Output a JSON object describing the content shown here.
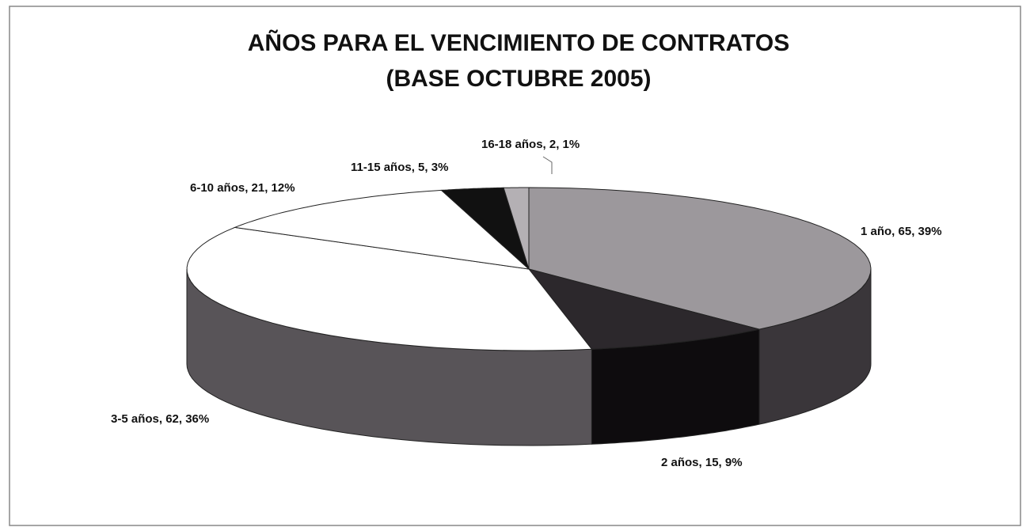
{
  "chart_data": {
    "type": "pie",
    "title": [
      "AÑOS PARA EL VENCIMIENTO DE CONTRATOS",
      "(BASE OCTUBRE 2005)"
    ],
    "values": [
      65,
      15,
      62,
      21,
      5,
      2
    ],
    "value_labels": [
      "1 año, 65, 39%",
      "2 años, 15, 9%",
      "3-5 años, 62, 36%",
      "6-10 años, 21, 12%",
      "11-15 años, 5, 3%",
      "16-18 años, 2, 1%"
    ],
    "colors": [
      "#9c989c",
      "#2c282c",
      "#ffffff",
      "#ffffff",
      "#111111",
      "#b4b0b4"
    ],
    "side_colors": [
      "#3a363a",
      "#0e0c0e",
      "#585458",
      "#585458",
      "#0a0a0a",
      "#6a666a"
    ]
  }
}
